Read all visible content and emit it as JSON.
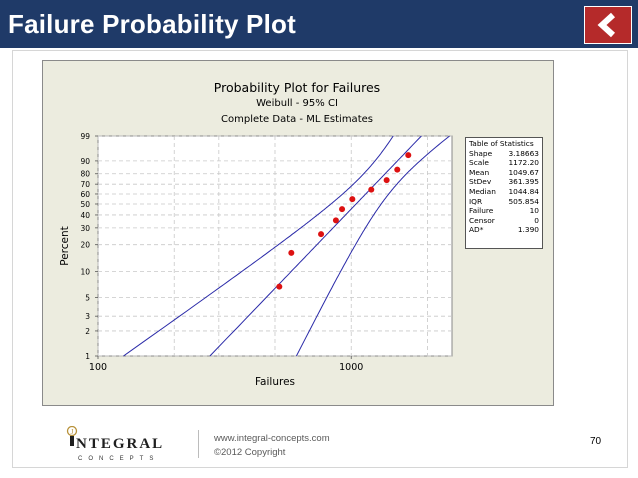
{
  "header": {
    "title": "Failure Probability Plot",
    "back_button_icon": "chevron-left-icon",
    "colors": {
      "bar": "#1f3a68",
      "button": "#b52a2a"
    }
  },
  "chart_data": {
    "type": "scatter",
    "title": "Probability Plot for Failures",
    "subtitle_lines": [
      "Weibull - 95% CI",
      "Complete Data - ML Estimates"
    ],
    "xlabel": "Failures",
    "ylabel": "Percent",
    "x_scale": "log",
    "y_scale": "weibull-probability",
    "xlim": [
      100,
      2500
    ],
    "ylim": [
      1,
      99
    ],
    "x_ticks": [
      100,
      1000
    ],
    "x_tick_labels": [
      "100",
      "1000"
    ],
    "y_ticks": [
      1,
      2,
      3,
      5,
      10,
      20,
      30,
      40,
      50,
      60,
      70,
      80,
      90,
      99
    ],
    "grid": true,
    "points": [
      {
        "x": 520,
        "y": 6.7
      },
      {
        "x": 580,
        "y": 16.3
      },
      {
        "x": 760,
        "y": 25.9
      },
      {
        "x": 870,
        "y": 35.5
      },
      {
        "x": 920,
        "y": 45.2
      },
      {
        "x": 1010,
        "y": 54.8
      },
      {
        "x": 1200,
        "y": 64.4
      },
      {
        "x": 1380,
        "y": 74.0
      },
      {
        "x": 1520,
        "y": 83.6
      },
      {
        "x": 1680,
        "y": 93.3
      }
    ],
    "fit": {
      "shape": 3.18663,
      "scale": 1172.2
    },
    "ci_level": 0.95,
    "point_color": "#dd1111",
    "line_color": "#2a2aa8",
    "statistics": {
      "title": "Table of Statistics",
      "rows": [
        {
          "label": "Shape",
          "value": "3.18663"
        },
        {
          "label": "Scale",
          "value": "1172.20"
        },
        {
          "label": "Mean",
          "value": "1049.67"
        },
        {
          "label": "StDev",
          "value": "361.395"
        },
        {
          "label": "Median",
          "value": "1044.84"
        },
        {
          "label": "IQR",
          "value": "505.854"
        },
        {
          "label": "Failure",
          "value": "10"
        },
        {
          "label": "Censor",
          "value": "0"
        },
        {
          "label": "AD*",
          "value": "1.390"
        }
      ]
    }
  },
  "footer": {
    "logo_word": "NTEGRAL",
    "logo_sub": "CONCEPTS",
    "url": "www.integral-concepts.com",
    "copyright": "©2012 Copyright",
    "page_number": "70"
  }
}
